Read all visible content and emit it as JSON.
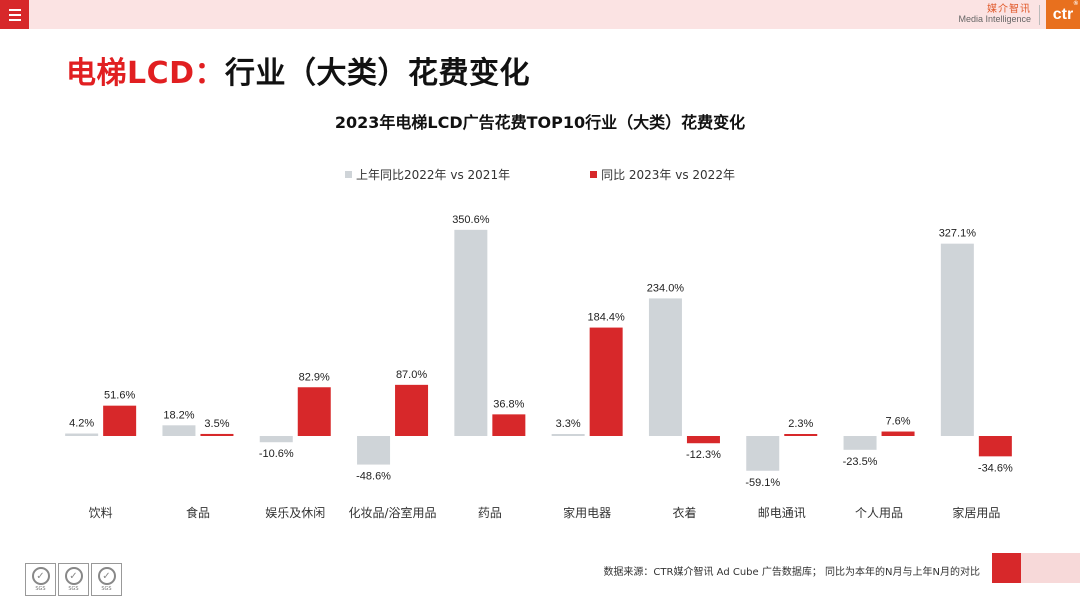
{
  "header": {
    "brand_cn": "媒介智讯",
    "brand_en": "Media Intelligence",
    "logo_text": "ctr",
    "logo_mark": "®"
  },
  "title": {
    "red_part": "电梯LCD：",
    "dark_part": "行业（大类）花费变化"
  },
  "colors": {
    "accent_red": "#d7282a",
    "series_gray": "#cfd4d8",
    "title_red": "#e11f21"
  },
  "chart_data": {
    "type": "bar",
    "title": "2023年电梯LCD广告花费TOP10行业（大类）花费变化",
    "categories": [
      "饮料",
      "食品",
      "娱乐及休闲",
      "化妆品/浴室用品",
      "药品",
      "家用电器",
      "衣着",
      "邮电通讯",
      "个人用品",
      "家居用品"
    ],
    "series": [
      {
        "name": "上年同比2022年 vs 2021年",
        "color": "#cfd4d8",
        "values": [
          4.2,
          18.2,
          -10.6,
          -48.6,
          350.6,
          3.3,
          234.0,
          -59.1,
          -23.5,
          327.1
        ],
        "labels": [
          "4.2%",
          "18.2%",
          "-10.6%",
          "-48.6%",
          "350.6%",
          "3.3%",
          "234.0%",
          "-59.1%",
          "-23.5%",
          "327.1%"
        ]
      },
      {
        "name": "同比 2023年 vs 2022年",
        "color": "#d7282a",
        "values": [
          51.6,
          3.5,
          82.9,
          87.0,
          36.8,
          184.4,
          -12.3,
          2.3,
          7.6,
          -34.6
        ],
        "labels": [
          "51.6%",
          "3.5%",
          "82.9%",
          "87.0%",
          "36.8%",
          "184.4%",
          "-12.3%",
          "2.3%",
          "7.6%",
          "-34.6%"
        ]
      }
    ],
    "legend_position": "top-center",
    "grid": false
  },
  "footer": {
    "source": "数据来源：CTR媒介智讯 Ad Cube 广告数据库；  同比为本年的N月与上年N月的对比",
    "cert_label": "SGS"
  }
}
